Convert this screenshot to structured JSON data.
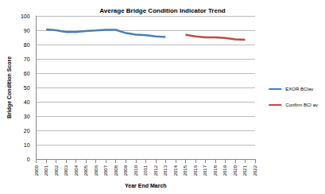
{
  "chart_data": {
    "type": "line",
    "title": "Average Bridge Condition Indicator Trend",
    "x_label": "Year End March",
    "y_label": "Bridge Condition Score",
    "categories": [
      "2000",
      "2001",
      "2002",
      "2003",
      "2004",
      "2005",
      "2006",
      "2007",
      "2008",
      "2009",
      "2010",
      "2011",
      "2012",
      "2013",
      "2014",
      "2015",
      "2016",
      "2017",
      "2018",
      "2019",
      "2020",
      "2021",
      "2022"
    ],
    "series": [
      {
        "name": "EXOR BCIav",
        "color": "#4a7ebb",
        "values": [
          null,
          90.5,
          90.0,
          88.8,
          88.7,
          89.5,
          89.8,
          90.3,
          90.3,
          88.0,
          87.0,
          86.5,
          85.7,
          85.3,
          null,
          null,
          null,
          null,
          null,
          null,
          null,
          null,
          null
        ]
      },
      {
        "name": "Confirm BCI av",
        "color": "#be4b48",
        "values": [
          null,
          null,
          null,
          null,
          null,
          null,
          null,
          null,
          null,
          null,
          null,
          null,
          null,
          null,
          null,
          86.8,
          85.7,
          85.0,
          85.0,
          84.6,
          83.6,
          83.3,
          null
        ]
      }
    ],
    "ylim": [
      0,
      100
    ],
    "yticks": [
      0,
      10,
      20,
      30,
      40,
      50,
      60,
      70,
      80,
      90,
      100
    ],
    "grid": true,
    "legend": "right"
  }
}
